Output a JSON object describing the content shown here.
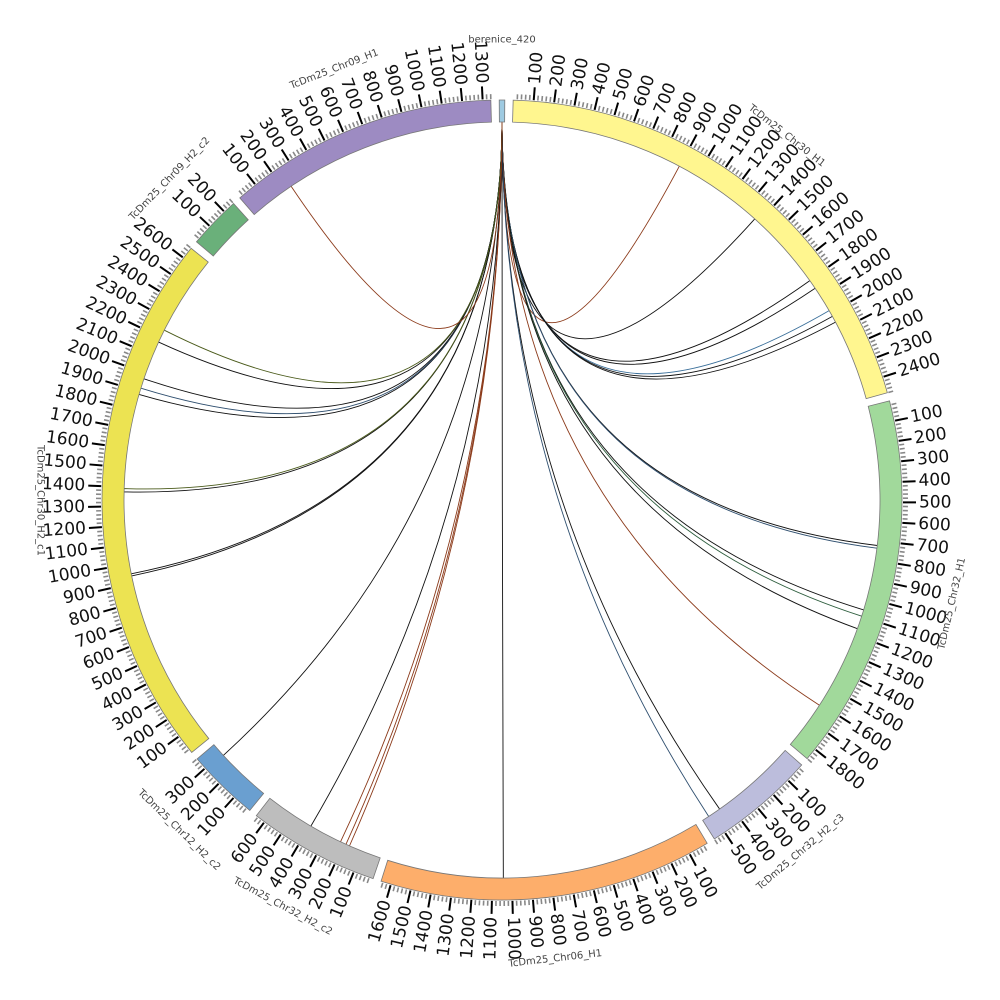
{
  "chart_data": {
    "type": "circos",
    "title": "",
    "tick_step": 100,
    "minor_tick_step": 20,
    "segments": [
      {
        "name": "berenice_420",
        "color": "#9ecae1",
        "length": 25,
        "ticks": false
      },
      {
        "name": "TcDm25_Chr30_H1",
        "color": "#fff68f",
        "length": 2480,
        "ticks": true
      },
      {
        "name": "TcDm25_Chr32_H1",
        "color": "#a1d99b",
        "length": 1860,
        "ticks": true
      },
      {
        "name": "TcDm25_Chr32_H2_c3",
        "color": "#bcbddc",
        "length": 560,
        "ticks": true
      },
      {
        "name": "TcDm25_Chr06_H1",
        "color": "#fdae6b",
        "length": 1650,
        "ticks": true
      },
      {
        "name": "TcDm25_Chr32_H2_c2",
        "color": "#bdbdbd",
        "length": 650,
        "ticks": true
      },
      {
        "name": "TcDm25_Chr12_H2_c2",
        "color": "#6a9fd0",
        "length": 360,
        "ticks": true
      },
      {
        "name": "TcDm25_Chr30_H2_c1",
        "color": "#ece352",
        "length": 2660,
        "ticks": true
      },
      {
        "name": "TcDm25_Chr09_H2_c2",
        "color": "#6ab07a",
        "length": 260,
        "ticks": true
      },
      {
        "name": "TcDm25_Chr09_H1",
        "color": "#9d8bc2",
        "length": 1340,
        "ticks": true
      }
    ],
    "links": [
      {
        "from": "berenice_420",
        "to": "TcDm25_Chr30_H1",
        "pos": 898,
        "color": "#8b3a1a"
      },
      {
        "from": "berenice_420",
        "to": "TcDm25_Chr30_H1",
        "pos": 1374,
        "color": "#111111"
      },
      {
        "from": "berenice_420",
        "to": "TcDm25_Chr30_H1",
        "pos": 1802,
        "color": "#111111"
      },
      {
        "from": "berenice_420",
        "to": "TcDm25_Chr30_H1",
        "pos": 1850,
        "color": "#111111"
      },
      {
        "from": "berenice_420",
        "to": "TcDm25_Chr30_H1",
        "pos": 1986,
        "color": "#3a6f9a"
      },
      {
        "from": "berenice_420",
        "to": "TcDm25_Chr30_H1",
        "pos": 2020,
        "color": "#111111"
      },
      {
        "from": "berenice_420",
        "to": "TcDm25_Chr30_H1",
        "pos": 2054,
        "color": "#111111"
      },
      {
        "from": "berenice_420",
        "to": "TcDm25_Chr32_H1",
        "pos": 724,
        "color": "#111111"
      },
      {
        "from": "berenice_420",
        "to": "TcDm25_Chr32_H1",
        "pos": 738,
        "color": "#2f4f6f"
      },
      {
        "from": "berenice_420",
        "to": "TcDm25_Chr32_H1",
        "pos": 1064,
        "color": "#111111"
      },
      {
        "from": "berenice_420",
        "to": "TcDm25_Chr32_H1",
        "pos": 1098,
        "color": "#2e5e3e"
      },
      {
        "from": "berenice_420",
        "to": "TcDm25_Chr32_H1",
        "pos": 1166,
        "color": "#111111"
      },
      {
        "from": "berenice_420",
        "to": "TcDm25_Chr32_H1",
        "pos": 1608,
        "color": "#8b3a1a"
      },
      {
        "from": "berenice_420",
        "to": "TcDm25_Chr32_H2_c3",
        "pos": 455,
        "color": "#111111"
      },
      {
        "from": "berenice_420",
        "to": "TcDm25_Chr32_H2_c3",
        "pos": 523,
        "color": "#2f4f6f"
      },
      {
        "from": "berenice_420",
        "to": "TcDm25_Chr06_H1",
        "pos": 1044,
        "color": "#111111"
      },
      {
        "from": "berenice_420",
        "to": "TcDm25_Chr32_H2_c2",
        "pos": 170,
        "color": "#8b3a1a"
      },
      {
        "from": "berenice_420",
        "to": "TcDm25_Chr32_H2_c2",
        "pos": 190,
        "color": "#8b3a1a"
      },
      {
        "from": "berenice_420",
        "to": "TcDm25_Chr32_H2_c2",
        "pos": 221,
        "color": "#8b3a1a"
      },
      {
        "from": "berenice_420",
        "to": "TcDm25_Chr32_H2_c2",
        "pos": 394,
        "color": "#111111"
      },
      {
        "from": "berenice_420",
        "to": "TcDm25_Chr12_H2_c2",
        "pos": 286,
        "color": "#111111"
      },
      {
        "from": "berenice_420",
        "to": "TcDm25_Chr30_H2_c1",
        "pos": 938,
        "color": "#111111"
      },
      {
        "from": "berenice_420",
        "to": "TcDm25_Chr30_H2_c1",
        "pos": 949,
        "color": "#111111"
      },
      {
        "from": "berenice_420",
        "to": "TcDm25_Chr30_H2_c1",
        "pos": 1374,
        "color": "#111111"
      },
      {
        "from": "berenice_420",
        "to": "TcDm25_Chr30_H2_c1",
        "pos": 1391,
        "color": "#4a5a1a"
      },
      {
        "from": "berenice_420",
        "to": "TcDm25_Chr30_H2_c1",
        "pos": 1884,
        "color": "#111111"
      },
      {
        "from": "berenice_420",
        "to": "TcDm25_Chr30_H2_c1",
        "pos": 1918,
        "color": "#2f4f6f"
      },
      {
        "from": "berenice_420",
        "to": "TcDm25_Chr30_H2_c1",
        "pos": 1969,
        "color": "#111111"
      },
      {
        "from": "berenice_420",
        "to": "TcDm25_Chr30_H2_c1",
        "pos": 2173,
        "color": "#111111"
      },
      {
        "from": "berenice_420",
        "to": "TcDm25_Chr30_H2_c1",
        "pos": 2241,
        "color": "#4a5a1a"
      },
      {
        "from": "berenice_420",
        "to": "TcDm25_Chr09_H1",
        "pos": 240,
        "color": "#8b3a1a"
      }
    ]
  }
}
